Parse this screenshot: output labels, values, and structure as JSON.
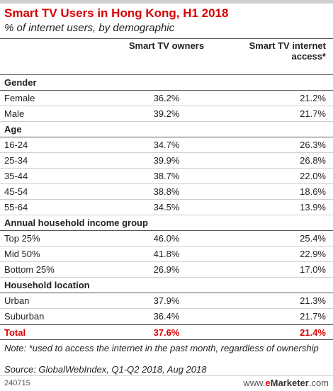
{
  "chart_data": {
    "type": "table",
    "title": "Smart TV Users in Hong Kong, H1 2018",
    "subtitle": "% of internet users, by demographic",
    "columns": [
      "Smart TV owners",
      "Smart TV internet access*"
    ],
    "groups": [
      {
        "name": "Gender",
        "rows": [
          {
            "label": "Female",
            "owners": "36.2%",
            "access": "21.2%"
          },
          {
            "label": "Male",
            "owners": "39.2%",
            "access": "21.7%"
          }
        ]
      },
      {
        "name": "Age",
        "rows": [
          {
            "label": "16-24",
            "owners": "34.7%",
            "access": "26.3%"
          },
          {
            "label": "25-34",
            "owners": "39.9%",
            "access": "26.8%"
          },
          {
            "label": "35-44",
            "owners": "38.7%",
            "access": "22.0%"
          },
          {
            "label": "45-54",
            "owners": "38.8%",
            "access": "18.6%"
          },
          {
            "label": "55-64",
            "owners": "34.5%",
            "access": "13.9%"
          }
        ]
      },
      {
        "name": "Annual household income group",
        "rows": [
          {
            "label": "Top 25%",
            "owners": "46.0%",
            "access": "25.4%"
          },
          {
            "label": "Mid 50%",
            "owners": "41.8%",
            "access": "22.9%"
          },
          {
            "label": "Bottom 25%",
            "owners": "26.9%",
            "access": "17.0%"
          }
        ]
      },
      {
        "name": "Household location",
        "rows": [
          {
            "label": "Urban",
            "owners": "37.9%",
            "access": "21.3%"
          },
          {
            "label": "Suburban",
            "owners": "36.4%",
            "access": "21.7%"
          }
        ]
      }
    ],
    "total": {
      "label": "Total",
      "owners": "37.6%",
      "access": "21.4%"
    },
    "note": "Note: *used to access the internet in the past month, regardless of ownership",
    "source": "Source: GlobalWebIndex, Q1-Q2 2018, Aug 2018"
  },
  "footer": {
    "chart_id": "240715",
    "brand_prefix": "www.",
    "brand_e": "e",
    "brand_name": "Marketer",
    "brand_suffix": ".com"
  },
  "colors": {
    "accent": "#d90000",
    "rule_dark": "#555555",
    "rule_light": "#cfcfcf"
  }
}
